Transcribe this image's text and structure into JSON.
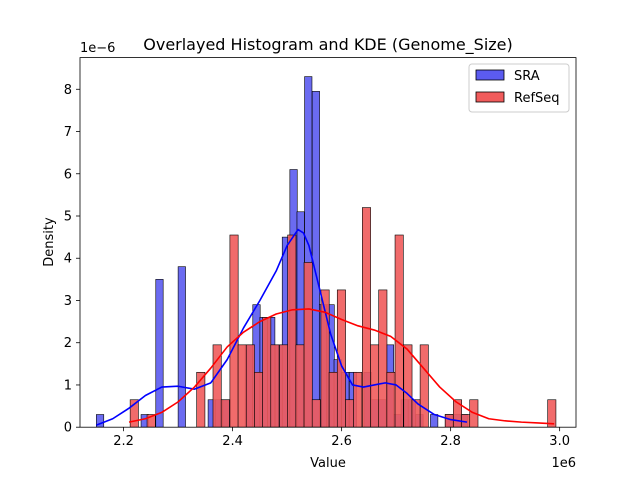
{
  "chart_data": {
    "type": "histogram-kde",
    "title": "Overlayed Histogram and KDE (Genome_Size)",
    "xlabel": "Value",
    "ylabel": "Density",
    "x_multiplier_label": "1e6",
    "y_multiplier_label": "1e−6",
    "xlim": [
      2.12,
      3.03
    ],
    "ylim": [
      0,
      8.75
    ],
    "xticks": [
      {
        "value": 2.2,
        "label": "2.2"
      },
      {
        "value": 2.4,
        "label": "2.4"
      },
      {
        "value": 2.6,
        "label": "2.6"
      },
      {
        "value": 2.8,
        "label": "2.8"
      },
      {
        "value": 3.0,
        "label": "3.0"
      }
    ],
    "yticks": [
      {
        "value": 0,
        "label": "0"
      },
      {
        "value": 1,
        "label": "1"
      },
      {
        "value": 2,
        "label": "2"
      },
      {
        "value": 3,
        "label": "3"
      },
      {
        "value": 4,
        "label": "4"
      },
      {
        "value": 5,
        "label": "5"
      },
      {
        "value": 6,
        "label": "6"
      },
      {
        "value": 7,
        "label": "7"
      },
      {
        "value": 8,
        "label": "8"
      }
    ],
    "legend_position": "top-right",
    "series": [
      {
        "name": "SRA",
        "color": "#0000ff",
        "fill": "#5b5bf0",
        "kde_color": "#0000ff",
        "bin_width": 0.0136,
        "bins": [
          {
            "x0": 2.15,
            "value": 0.3
          },
          {
            "x0": 2.232,
            "value": 0.3
          },
          {
            "x0": 2.259,
            "value": 3.5
          },
          {
            "x0": 2.3,
            "value": 3.8
          },
          {
            "x0": 2.355,
            "value": 0.65
          },
          {
            "x0": 2.368,
            "value": 0.65
          },
          {
            "x0": 2.382,
            "value": 0.65
          },
          {
            "x0": 2.423,
            "value": 1.95
          },
          {
            "x0": 2.437,
            "value": 2.9
          },
          {
            "x0": 2.45,
            "value": 2.6
          },
          {
            "x0": 2.464,
            "value": 2.6
          },
          {
            "x0": 2.478,
            "value": 1.95
          },
          {
            "x0": 2.491,
            "value": 4.5
          },
          {
            "x0": 2.505,
            "value": 6.1
          },
          {
            "x0": 2.518,
            "value": 5.1
          },
          {
            "x0": 2.532,
            "value": 8.3
          },
          {
            "x0": 2.546,
            "value": 7.95
          },
          {
            "x0": 2.559,
            "value": 2.9
          },
          {
            "x0": 2.573,
            "value": 2.9
          },
          {
            "x0": 2.586,
            "value": 1.6
          },
          {
            "x0": 2.6,
            "value": 1.3
          },
          {
            "x0": 2.614,
            "value": 1.3
          },
          {
            "x0": 2.641,
            "value": 1.3
          },
          {
            "x0": 2.654,
            "value": 0.65
          },
          {
            "x0": 2.668,
            "value": 0.65
          },
          {
            "x0": 2.682,
            "value": 1.95
          },
          {
            "x0": 2.695,
            "value": 0.3
          },
          {
            "x0": 2.709,
            "value": 0.65
          },
          {
            "x0": 2.722,
            "value": 0.65
          },
          {
            "x0": 2.736,
            "value": 0.3
          },
          {
            "x0": 2.763,
            "value": 0.3
          },
          {
            "x0": 2.79,
            "value": 0.3
          },
          {
            "x0": 2.804,
            "value": 0.3
          },
          {
            "x0": 2.818,
            "value": 0.3
          }
        ],
        "kde": {
          "x": [
            2.15,
            2.18,
            2.21,
            2.24,
            2.27,
            2.3,
            2.33,
            2.36,
            2.39,
            2.42,
            2.45,
            2.48,
            2.5,
            2.52,
            2.53,
            2.54,
            2.56,
            2.58,
            2.6,
            2.62,
            2.64,
            2.66,
            2.68,
            2.7,
            2.72,
            2.74,
            2.77,
            2.8,
            2.83
          ],
          "y": [
            0.05,
            0.2,
            0.45,
            0.75,
            0.95,
            0.97,
            0.9,
            1.05,
            1.6,
            2.35,
            3.0,
            3.7,
            4.3,
            4.68,
            4.6,
            4.3,
            3.25,
            2.2,
            1.45,
            1.0,
            0.95,
            1.0,
            1.05,
            1.0,
            0.8,
            0.55,
            0.3,
            0.18,
            0.12
          ]
        }
      },
      {
        "name": "RefSeq",
        "color": "#ff0000",
        "fill": "#f05b5b",
        "kde_color": "#ff0000",
        "bin_width": 0.0152,
        "bins": [
          {
            "x0": 2.212,
            "value": 0.65
          },
          {
            "x0": 2.243,
            "value": 0.3
          },
          {
            "x0": 2.334,
            "value": 1.3
          },
          {
            "x0": 2.364,
            "value": 1.95
          },
          {
            "x0": 2.379,
            "value": 0.65
          },
          {
            "x0": 2.395,
            "value": 4.55
          },
          {
            "x0": 2.41,
            "value": 1.95
          },
          {
            "x0": 2.425,
            "value": 1.95
          },
          {
            "x0": 2.44,
            "value": 1.3
          },
          {
            "x0": 2.455,
            "value": 2.6
          },
          {
            "x0": 2.47,
            "value": 1.95
          },
          {
            "x0": 2.486,
            "value": 1.95
          },
          {
            "x0": 2.501,
            "value": 4.55
          },
          {
            "x0": 2.516,
            "value": 1.95
          },
          {
            "x0": 2.531,
            "value": 3.9
          },
          {
            "x0": 2.546,
            "value": 0.65
          },
          {
            "x0": 2.562,
            "value": 3.25
          },
          {
            "x0": 2.577,
            "value": 1.3
          },
          {
            "x0": 2.592,
            "value": 3.25
          },
          {
            "x0": 2.607,
            "value": 0.65
          },
          {
            "x0": 2.622,
            "value": 1.3
          },
          {
            "x0": 2.638,
            "value": 5.2
          },
          {
            "x0": 2.653,
            "value": 1.95
          },
          {
            "x0": 2.668,
            "value": 3.25
          },
          {
            "x0": 2.683,
            "value": 1.3
          },
          {
            "x0": 2.698,
            "value": 4.55
          },
          {
            "x0": 2.714,
            "value": 1.95
          },
          {
            "x0": 2.729,
            "value": 0.65
          },
          {
            "x0": 2.744,
            "value": 1.95
          },
          {
            "x0": 2.79,
            "value": 0.3
          },
          {
            "x0": 2.805,
            "value": 0.65
          },
          {
            "x0": 2.82,
            "value": 0.3
          },
          {
            "x0": 2.835,
            "value": 0.65
          },
          {
            "x0": 2.978,
            "value": 0.65
          }
        ],
        "kde": {
          "x": [
            2.21,
            2.24,
            2.27,
            2.3,
            2.33,
            2.36,
            2.39,
            2.42,
            2.45,
            2.48,
            2.51,
            2.54,
            2.57,
            2.6,
            2.63,
            2.66,
            2.69,
            2.72,
            2.75,
            2.78,
            2.81,
            2.84,
            2.87,
            2.9,
            2.93,
            2.96,
            2.99
          ],
          "y": [
            0.12,
            0.2,
            0.35,
            0.6,
            0.95,
            1.4,
            1.9,
            2.25,
            2.5,
            2.68,
            2.78,
            2.8,
            2.72,
            2.55,
            2.4,
            2.3,
            2.15,
            1.85,
            1.4,
            0.95,
            0.6,
            0.35,
            0.2,
            0.15,
            0.12,
            0.1,
            0.08
          ]
        }
      }
    ]
  }
}
